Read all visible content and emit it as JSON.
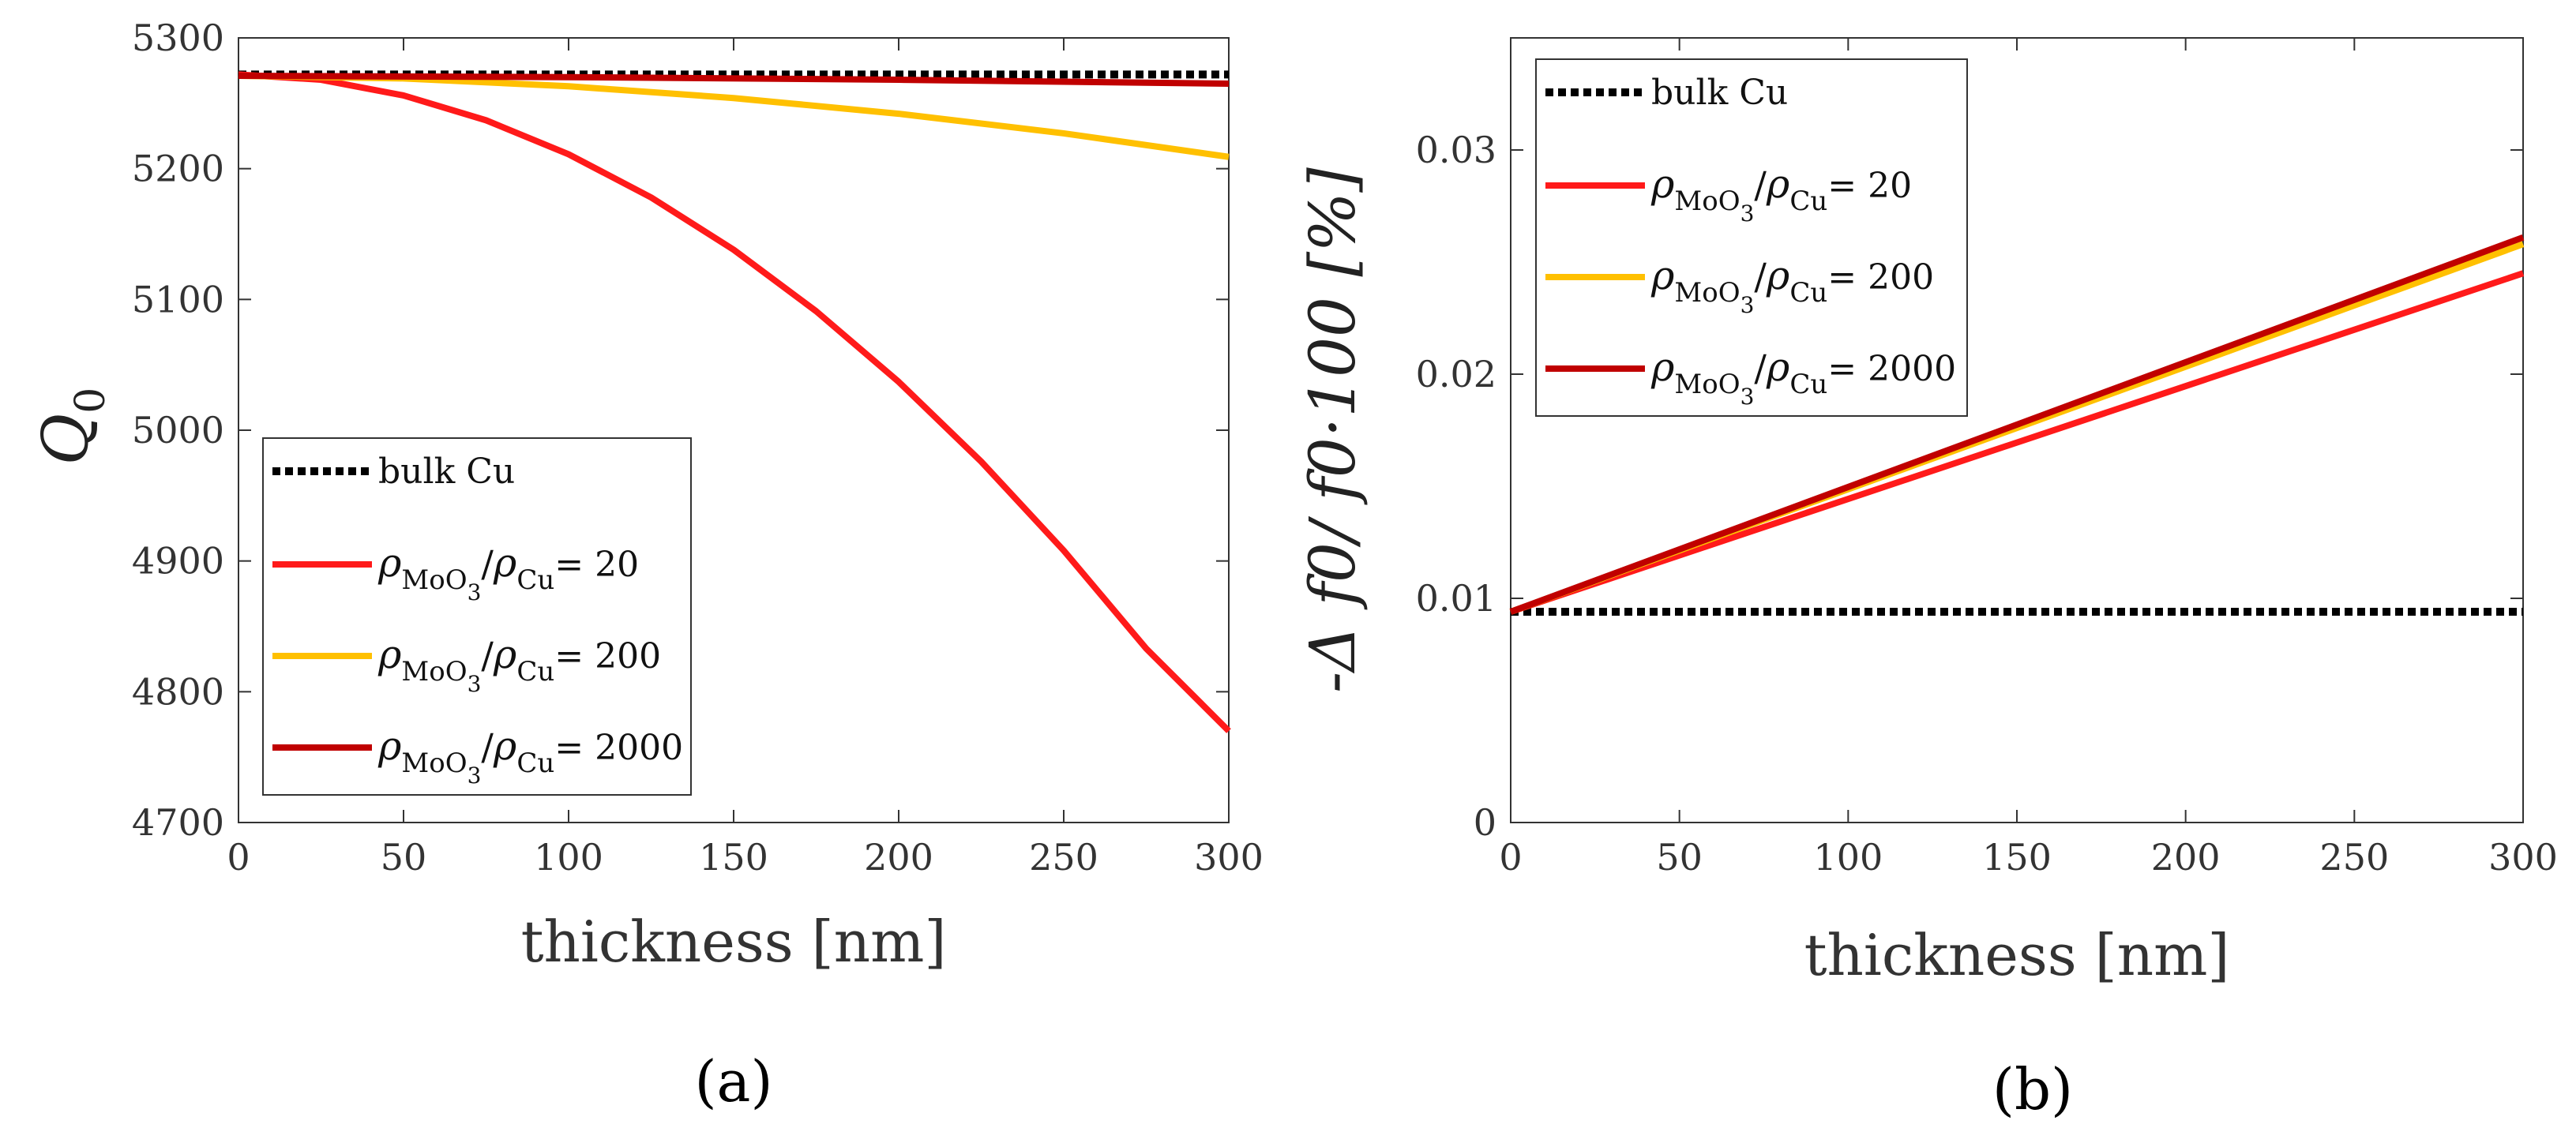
{
  "chart_data": [
    {
      "type": "line",
      "panel_label": "a",
      "caption": "(a)",
      "xlabel": "thickness [nm]",
      "ylabel": "Q",
      "ylabel_sub": "0",
      "xlim": [
        0,
        300
      ],
      "ylim": [
        4700,
        5300
      ],
      "xticks": [
        0,
        50,
        100,
        150,
        200,
        250,
        300
      ],
      "yticks": [
        4700,
        4800,
        4900,
        5000,
        5100,
        5200,
        5300
      ],
      "legend_position": "lower-left",
      "series": [
        {
          "name": "bulk Cu",
          "style": "dotted",
          "color": "#000000",
          "x": [
            0,
            300
          ],
          "y": [
            5272,
            5272
          ]
        },
        {
          "name": "ρMoO3/ρCu= 20",
          "ratio": "20",
          "style": "solid",
          "color": "#ff1a1a",
          "x": [
            0,
            25,
            50,
            75,
            100,
            125,
            150,
            175,
            200,
            225,
            250,
            275,
            300
          ],
          "y": [
            5272,
            5268,
            5256,
            5237,
            5211,
            5178,
            5138,
            5091,
            5037,
            4976,
            4908,
            4833,
            4770
          ]
        },
        {
          "name": "ρMoO3/ρCu= 200",
          "ratio": "200",
          "style": "solid",
          "color": "#ffc000",
          "x": [
            0,
            50,
            100,
            150,
            200,
            250,
            300
          ],
          "y": [
            5271,
            5269,
            5263,
            5254,
            5242,
            5227,
            5209
          ]
        },
        {
          "name": "ρMoO3/ρCu= 2000",
          "ratio": "2000",
          "style": "solid",
          "color": "#c00000",
          "x": [
            0,
            100,
            200,
            300
          ],
          "y": [
            5271,
            5270,
            5268,
            5265
          ]
        }
      ]
    },
    {
      "type": "line",
      "panel_label": "b",
      "caption": "(b)",
      "xlabel": "thickness [nm]",
      "ylabel": "-Δ f0/ f0·100 [%]",
      "xlim": [
        0,
        300
      ],
      "ylim": [
        0,
        0.035
      ],
      "xticks": [
        0,
        50,
        100,
        150,
        200,
        250,
        300
      ],
      "yticks": [
        0,
        0.01,
        0.02,
        0.03
      ],
      "ytick_labels": [
        "0",
        "0.01",
        "0.02",
        "0.03"
      ],
      "legend_position": "top-left",
      "series": [
        {
          "name": "bulk Cu",
          "style": "dotted",
          "color": "#000000",
          "x": [
            0,
            300
          ],
          "y": [
            0.0094,
            0.0094
          ]
        },
        {
          "name": "ρMoO3/ρCu= 20",
          "ratio": "20",
          "style": "solid",
          "color": "#ff1a1a",
          "x": [
            0,
            300
          ],
          "y": [
            0.0094,
            0.0245
          ]
        },
        {
          "name": "ρMoO3/ρCu= 200",
          "ratio": "200",
          "style": "solid",
          "color": "#ffc000",
          "x": [
            0,
            300
          ],
          "y": [
            0.0094,
            0.0258
          ]
        },
        {
          "name": "ρMoO3/ρCu= 2000",
          "ratio": "2000",
          "style": "solid",
          "color": "#c00000",
          "x": [
            0,
            300
          ],
          "y": [
            0.0094,
            0.0261
          ]
        }
      ]
    }
  ]
}
